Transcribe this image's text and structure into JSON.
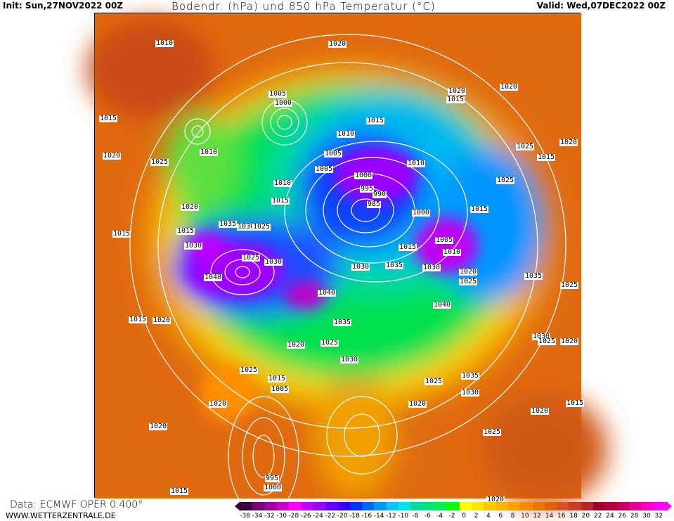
{
  "header": {
    "init": "Init: Sun,27NOV2022 00Z",
    "title": "Bodendr. (hPa) und 850 hPa Temperatur (°C)",
    "valid": "Valid: Wed,07DEC2022 00Z"
  },
  "footer": {
    "source": "Data: ECMWF  OPER  0.400°",
    "website": "WWW.WETTERZENTRALE.DE"
  },
  "map": {
    "field": "850 hPa temperature (shaded) and surface pressure (contours)",
    "pressure_labels": [
      "1010",
      "1020",
      "1005",
      "1000",
      "1015",
      "1010",
      "1010",
      "1025",
      "1005",
      "1005",
      "1000",
      "995",
      "990",
      "985",
      "1010",
      "1000",
      "1010",
      "1015",
      "1020",
      "1035",
      "1030",
      "1025",
      "1015",
      "1030",
      "1025",
      "1030",
      "1005",
      "1010",
      "1015",
      "1030",
      "1035",
      "1030",
      "1020",
      "1025",
      "1040",
      "1040",
      "1035",
      "1020",
      "1025",
      "1030",
      "1015",
      "1020",
      "1025",
      "1015",
      "1005",
      "1020",
      "1025",
      "1035",
      "1030",
      "1020",
      "1020",
      "1015",
      "1025",
      "1020",
      "995",
      "1000",
      "1015",
      "1020",
      "1020",
      "1015",
      "1020",
      "1025",
      "1015",
      "1020",
      "1025",
      "1015",
      "1035",
      "1025",
      "1020",
      "1030",
      "1025",
      "1020",
      "1015",
      "1015",
      "1040"
    ]
  },
  "colorbar": {
    "ticks": [
      "-38",
      "-34",
      "-32",
      "-30",
      "-28",
      "-26",
      "-24",
      "-22",
      "-20",
      "-18",
      "-16",
      "-14",
      "-12",
      "-10",
      "-8",
      "-6",
      "-4",
      "-2",
      "0",
      "2",
      "4",
      "6",
      "8",
      "10",
      "12",
      "14",
      "16",
      "18",
      "20",
      "22",
      "24",
      "26",
      "28",
      "30",
      "32"
    ],
    "colors": [
      "#3c0040",
      "#780078",
      "#a000a0",
      "#c800c8",
      "#ff00ff",
      "#c000ff",
      "#9600ff",
      "#6400ff",
      "#3200ff",
      "#0032ff",
      "#0064ff",
      "#0096ff",
      "#00c8ff",
      "#00e6e6",
      "#00dca0",
      "#00e678",
      "#00f050",
      "#00ff00",
      "#ffff00",
      "#ffe600",
      "#ffc800",
      "#ffb400",
      "#ffa000",
      "#f08c00",
      "#e67800",
      "#dc6400",
      "#dc5028",
      "#c83c28",
      "#b42828",
      "#a00028",
      "#b4003c",
      "#c80064",
      "#e60096",
      "#ff00c8",
      "#ff00ff"
    ]
  }
}
